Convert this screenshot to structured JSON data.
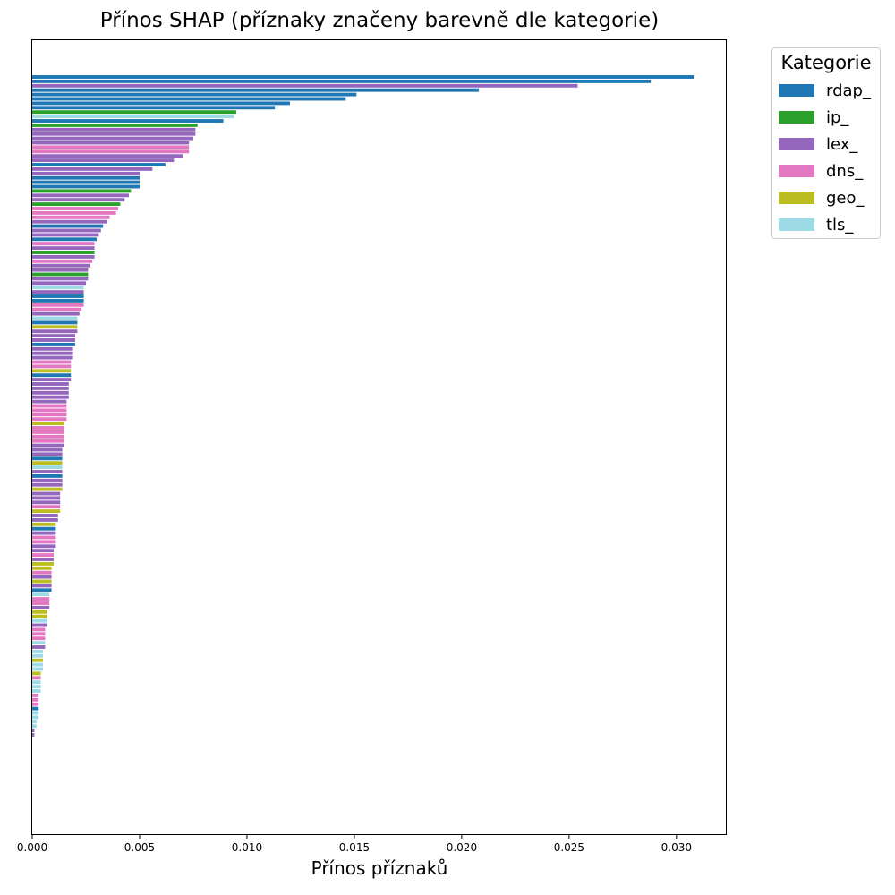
{
  "chart_data": {
    "type": "bar",
    "orientation": "horizontal",
    "title": "Přínos SHAP (příznaky značeny barevně dle kategorie)",
    "xlabel": "Přínos příznaků",
    "ylabel": "",
    "xlim": [
      0,
      0.03234
    ],
    "xticks": [
      "0.000",
      "0.005",
      "0.010",
      "0.015",
      "0.020",
      "0.025",
      "0.030"
    ],
    "xtick_values": [
      0,
      0.005,
      0.01,
      0.015,
      0.02,
      0.025,
      0.03
    ],
    "grid": false,
    "legend": {
      "title": "Kategorie",
      "placement": "outside-top-right",
      "entries": [
        "rdap_",
        "ip_",
        "lex_",
        "dns_",
        "geo_",
        "tls_"
      ]
    },
    "colors": {
      "rdap_": "#1f77b4",
      "ip_": "#2ca02c",
      "lex_": "#9467bd",
      "dns_": "#e377c2",
      "geo_": "#bcbd22",
      "tls_": "#9edae5"
    },
    "bars": [
      {
        "category": "rdap_",
        "value": 0.0308
      },
      {
        "category": "rdap_",
        "value": 0.0288
      },
      {
        "category": "lex_",
        "value": 0.0254
      },
      {
        "category": "rdap_",
        "value": 0.0208
      },
      {
        "category": "rdap_",
        "value": 0.0151
      },
      {
        "category": "rdap_",
        "value": 0.0146
      },
      {
        "category": "rdap_",
        "value": 0.012
      },
      {
        "category": "rdap_",
        "value": 0.0113
      },
      {
        "category": "ip_",
        "value": 0.0095
      },
      {
        "category": "tls_",
        "value": 0.0094
      },
      {
        "category": "rdap_",
        "value": 0.0089
      },
      {
        "category": "ip_",
        "value": 0.0077
      },
      {
        "category": "lex_",
        "value": 0.0076
      },
      {
        "category": "lex_",
        "value": 0.0076
      },
      {
        "category": "lex_",
        "value": 0.0075
      },
      {
        "category": "lex_",
        "value": 0.0073
      },
      {
        "category": "dns_",
        "value": 0.0073
      },
      {
        "category": "dns_",
        "value": 0.0073
      },
      {
        "category": "lex_",
        "value": 0.007
      },
      {
        "category": "lex_",
        "value": 0.0066
      },
      {
        "category": "rdap_",
        "value": 0.0062
      },
      {
        "category": "lex_",
        "value": 0.0056
      },
      {
        "category": "lex_",
        "value": 0.005
      },
      {
        "category": "rdap_",
        "value": 0.005
      },
      {
        "category": "rdap_",
        "value": 0.005
      },
      {
        "category": "rdap_",
        "value": 0.005
      },
      {
        "category": "ip_",
        "value": 0.0046
      },
      {
        "category": "lex_",
        "value": 0.0045
      },
      {
        "category": "lex_",
        "value": 0.0043
      },
      {
        "category": "ip_",
        "value": 0.0041
      },
      {
        "category": "dns_",
        "value": 0.004
      },
      {
        "category": "dns_",
        "value": 0.0039
      },
      {
        "category": "dns_",
        "value": 0.0036
      },
      {
        "category": "lex_",
        "value": 0.0035
      },
      {
        "category": "rdap_",
        "value": 0.0033
      },
      {
        "category": "lex_",
        "value": 0.0032
      },
      {
        "category": "lex_",
        "value": 0.0031
      },
      {
        "category": "rdap_",
        "value": 0.003
      },
      {
        "category": "dns_",
        "value": 0.0029
      },
      {
        "category": "lex_",
        "value": 0.0029
      },
      {
        "category": "ip_",
        "value": 0.0029
      },
      {
        "category": "lex_",
        "value": 0.0029
      },
      {
        "category": "dns_",
        "value": 0.0028
      },
      {
        "category": "lex_",
        "value": 0.0027
      },
      {
        "category": "lex_",
        "value": 0.0026
      },
      {
        "category": "ip_",
        "value": 0.0026
      },
      {
        "category": "lex_",
        "value": 0.0026
      },
      {
        "category": "lex_",
        "value": 0.0025
      },
      {
        "category": "tls_",
        "value": 0.0024
      },
      {
        "category": "lex_",
        "value": 0.0024
      },
      {
        "category": "rdap_",
        "value": 0.0024
      },
      {
        "category": "rdap_",
        "value": 0.0024
      },
      {
        "category": "dns_",
        "value": 0.0024
      },
      {
        "category": "dns_",
        "value": 0.0023
      },
      {
        "category": "lex_",
        "value": 0.0022
      },
      {
        "category": "tls_",
        "value": 0.0021
      },
      {
        "category": "rdap_",
        "value": 0.0021
      },
      {
        "category": "geo_",
        "value": 0.0021
      },
      {
        "category": "lex_",
        "value": 0.0021
      },
      {
        "category": "lex_",
        "value": 0.002
      },
      {
        "category": "lex_",
        "value": 0.002
      },
      {
        "category": "rdap_",
        "value": 0.002
      },
      {
        "category": "lex_",
        "value": 0.0019
      },
      {
        "category": "lex_",
        "value": 0.0019
      },
      {
        "category": "lex_",
        "value": 0.0019
      },
      {
        "category": "dns_",
        "value": 0.0018
      },
      {
        "category": "dns_",
        "value": 0.0018
      },
      {
        "category": "geo_",
        "value": 0.0018
      },
      {
        "category": "rdap_",
        "value": 0.0018
      },
      {
        "category": "lex_",
        "value": 0.0018
      },
      {
        "category": "lex_",
        "value": 0.0017
      },
      {
        "category": "lex_",
        "value": 0.0017
      },
      {
        "category": "lex_",
        "value": 0.0017
      },
      {
        "category": "lex_",
        "value": 0.0017
      },
      {
        "category": "lex_",
        "value": 0.0016
      },
      {
        "category": "dns_",
        "value": 0.0016
      },
      {
        "category": "dns_",
        "value": 0.0016
      },
      {
        "category": "dns_",
        "value": 0.0016
      },
      {
        "category": "dns_",
        "value": 0.0016
      },
      {
        "category": "geo_",
        "value": 0.0015
      },
      {
        "category": "dns_",
        "value": 0.0015
      },
      {
        "category": "dns_",
        "value": 0.0015
      },
      {
        "category": "dns_",
        "value": 0.0015
      },
      {
        "category": "dns_",
        "value": 0.0015
      },
      {
        "category": "lex_",
        "value": 0.0015
      },
      {
        "category": "lex_",
        "value": 0.0014
      },
      {
        "category": "lex_",
        "value": 0.0014
      },
      {
        "category": "rdap_",
        "value": 0.0014
      },
      {
        "category": "geo_",
        "value": 0.0014
      },
      {
        "category": "tls_",
        "value": 0.0014
      },
      {
        "category": "lex_",
        "value": 0.0014
      },
      {
        "category": "rdap_",
        "value": 0.0014
      },
      {
        "category": "lex_",
        "value": 0.0014
      },
      {
        "category": "lex_",
        "value": 0.0014
      },
      {
        "category": "geo_",
        "value": 0.0014
      },
      {
        "category": "lex_",
        "value": 0.0013
      },
      {
        "category": "lex_",
        "value": 0.0013
      },
      {
        "category": "lex_",
        "value": 0.0013
      },
      {
        "category": "dns_",
        "value": 0.0013
      },
      {
        "category": "geo_",
        "value": 0.0013
      },
      {
        "category": "lex_",
        "value": 0.0012
      },
      {
        "category": "lex_",
        "value": 0.0012
      },
      {
        "category": "geo_",
        "value": 0.0011
      },
      {
        "category": "rdap_",
        "value": 0.0011
      },
      {
        "category": "lex_",
        "value": 0.0011
      },
      {
        "category": "dns_",
        "value": 0.0011
      },
      {
        "category": "dns_",
        "value": 0.0011
      },
      {
        "category": "lex_",
        "value": 0.0011
      },
      {
        "category": "lex_",
        "value": 0.001
      },
      {
        "category": "dns_",
        "value": 0.001
      },
      {
        "category": "lex_",
        "value": 0.001
      },
      {
        "category": "geo_",
        "value": 0.001
      },
      {
        "category": "geo_",
        "value": 0.0009
      },
      {
        "category": "dns_",
        "value": 0.0009
      },
      {
        "category": "lex_",
        "value": 0.0009
      },
      {
        "category": "geo_",
        "value": 0.0009
      },
      {
        "category": "lex_",
        "value": 0.0009
      },
      {
        "category": "rdap_",
        "value": 0.0009
      },
      {
        "category": "tls_",
        "value": 0.0008
      },
      {
        "category": "dns_",
        "value": 0.0008
      },
      {
        "category": "dns_",
        "value": 0.0008
      },
      {
        "category": "lex_",
        "value": 0.0008
      },
      {
        "category": "geo_",
        "value": 0.0007
      },
      {
        "category": "geo_",
        "value": 0.0007
      },
      {
        "category": "tls_",
        "value": 0.0007
      },
      {
        "category": "lex_",
        "value": 0.0007
      },
      {
        "category": "dns_",
        "value": 0.0006
      },
      {
        "category": "dns_",
        "value": 0.0006
      },
      {
        "category": "dns_",
        "value": 0.0006
      },
      {
        "category": "tls_",
        "value": 0.0006
      },
      {
        "category": "lex_",
        "value": 0.0006
      },
      {
        "category": "tls_",
        "value": 0.0005
      },
      {
        "category": "tls_",
        "value": 0.0005
      },
      {
        "category": "geo_",
        "value": 0.0005
      },
      {
        "category": "tls_",
        "value": 0.0005
      },
      {
        "category": "tls_",
        "value": 0.0005
      },
      {
        "category": "geo_",
        "value": 0.0004
      },
      {
        "category": "dns_",
        "value": 0.0004
      },
      {
        "category": "tls_",
        "value": 0.0004
      },
      {
        "category": "tls_",
        "value": 0.0004
      },
      {
        "category": "tls_",
        "value": 0.0004
      },
      {
        "category": "dns_",
        "value": 0.0003
      },
      {
        "category": "dns_",
        "value": 0.0003
      },
      {
        "category": "dns_",
        "value": 0.0003
      },
      {
        "category": "rdap_",
        "value": 0.0003
      },
      {
        "category": "tls_",
        "value": 0.0003
      },
      {
        "category": "tls_",
        "value": 0.0003
      },
      {
        "category": "tls_",
        "value": 0.0002
      },
      {
        "category": "tls_",
        "value": 0.0002
      },
      {
        "category": "lex_",
        "value": 0.0001
      },
      {
        "category": "lex_",
        "value": 0.0001
      }
    ]
  }
}
